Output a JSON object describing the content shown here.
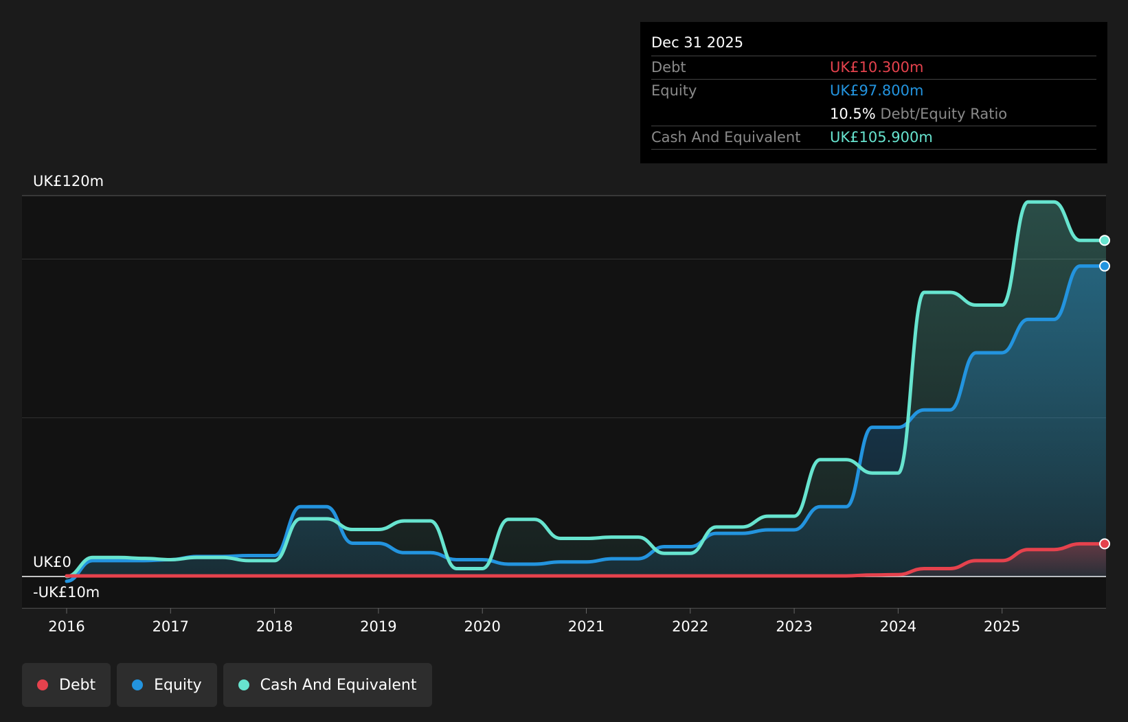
{
  "tooltip": {
    "date": "Dec 31 2025",
    "debt_label": "Debt",
    "debt_value": "UK£10.300m",
    "equity_label": "Equity",
    "equity_value": "UK£97.800m",
    "ratio_value": "10.5%",
    "ratio_label": "Debt/Equity Ratio",
    "cash_label": "Cash And Equivalent",
    "cash_value": "UK£105.900m"
  },
  "legend": [
    {
      "label": "Debt",
      "color": "#e5424d"
    },
    {
      "label": "Equity",
      "color": "#2394df"
    },
    {
      "label": "Cash And Equivalent",
      "color": "#67e4cf"
    }
  ],
  "chart_data": {
    "type": "area",
    "y_tick_labels": [
      {
        "value": 120,
        "label": "UK£120m"
      },
      {
        "value": 0,
        "label": "UK£0"
      },
      {
        "value": -10,
        "label": "-UK£10m"
      }
    ],
    "ylim": [
      -10,
      120
    ],
    "xlim": [
      2015.58,
      2026.0
    ],
    "x_ticks": [
      2016,
      2017,
      2018,
      2019,
      2020,
      2021,
      2022,
      2023,
      2024,
      2025
    ],
    "gridlines": [
      120,
      100,
      50,
      0,
      -10
    ],
    "legend_position": "bottom-left",
    "series": [
      {
        "name": "Debt",
        "color": "#e5424d",
        "points": [
          [
            2016.0,
            0.2
          ],
          [
            2023.5,
            0.2
          ],
          [
            2023.75,
            0.5
          ],
          [
            2024.0,
            0.6
          ],
          [
            2024.25,
            2.5
          ],
          [
            2024.5,
            2.5
          ],
          [
            2024.75,
            5.0
          ],
          [
            2025.0,
            5.0
          ],
          [
            2025.25,
            8.5
          ],
          [
            2025.5,
            8.5
          ],
          [
            2025.75,
            10.3
          ],
          [
            2026.0,
            10.3
          ]
        ]
      },
      {
        "name": "Equity",
        "color": "#2394df",
        "points": [
          [
            2016.0,
            -1.5
          ],
          [
            2016.25,
            5.0
          ],
          [
            2016.5,
            5.0
          ],
          [
            2016.75,
            5.0
          ],
          [
            2017.0,
            5.3
          ],
          [
            2017.25,
            6.3
          ],
          [
            2017.5,
            6.3
          ],
          [
            2017.75,
            6.6
          ],
          [
            2018.0,
            6.6
          ],
          [
            2018.25,
            22.0
          ],
          [
            2018.5,
            22.0
          ],
          [
            2018.75,
            10.5
          ],
          [
            2019.0,
            10.5
          ],
          [
            2019.25,
            7.5
          ],
          [
            2019.5,
            7.5
          ],
          [
            2019.75,
            5.3
          ],
          [
            2020.0,
            5.3
          ],
          [
            2020.25,
            3.9
          ],
          [
            2020.5,
            3.9
          ],
          [
            2020.75,
            4.6
          ],
          [
            2021.0,
            4.6
          ],
          [
            2021.25,
            5.6
          ],
          [
            2021.5,
            5.6
          ],
          [
            2021.75,
            9.4
          ],
          [
            2022.0,
            9.4
          ],
          [
            2022.25,
            13.6
          ],
          [
            2022.5,
            13.6
          ],
          [
            2022.75,
            14.7
          ],
          [
            2023.0,
            14.7
          ],
          [
            2023.25,
            22.0
          ],
          [
            2023.5,
            22.0
          ],
          [
            2023.75,
            47.0
          ],
          [
            2024.0,
            47.0
          ],
          [
            2024.25,
            52.5
          ],
          [
            2024.5,
            52.5
          ],
          [
            2024.75,
            70.5
          ],
          [
            2025.0,
            70.5
          ],
          [
            2025.25,
            81.0
          ],
          [
            2025.5,
            81.0
          ],
          [
            2025.75,
            97.8
          ],
          [
            2026.0,
            97.8
          ]
        ]
      },
      {
        "name": "Cash And Equivalent",
        "color": "#67e4cf",
        "points": [
          [
            2016.0,
            0.0
          ],
          [
            2016.25,
            6.0
          ],
          [
            2016.5,
            6.0
          ],
          [
            2016.75,
            5.7
          ],
          [
            2017.0,
            5.3
          ],
          [
            2017.25,
            6.0
          ],
          [
            2017.5,
            6.0
          ],
          [
            2017.75,
            5.0
          ],
          [
            2018.0,
            5.0
          ],
          [
            2018.25,
            18.2
          ],
          [
            2018.5,
            18.2
          ],
          [
            2018.75,
            14.8
          ],
          [
            2019.0,
            14.8
          ],
          [
            2019.25,
            17.5
          ],
          [
            2019.5,
            17.5
          ],
          [
            2019.75,
            2.5
          ],
          [
            2020.0,
            2.5
          ],
          [
            2020.25,
            18.0
          ],
          [
            2020.5,
            18.0
          ],
          [
            2020.75,
            12.0
          ],
          [
            2021.0,
            12.0
          ],
          [
            2021.25,
            12.4
          ],
          [
            2021.5,
            12.4
          ],
          [
            2021.75,
            7.3
          ],
          [
            2022.0,
            7.3
          ],
          [
            2022.25,
            15.6
          ],
          [
            2022.5,
            15.6
          ],
          [
            2022.75,
            19.0
          ],
          [
            2023.0,
            19.0
          ],
          [
            2023.25,
            36.8
          ],
          [
            2023.5,
            36.8
          ],
          [
            2023.75,
            32.6
          ],
          [
            2024.0,
            32.6
          ],
          [
            2024.25,
            89.5
          ],
          [
            2024.5,
            89.5
          ],
          [
            2024.75,
            85.5
          ],
          [
            2025.0,
            85.5
          ],
          [
            2025.25,
            118.0
          ],
          [
            2025.5,
            118.0
          ],
          [
            2025.75,
            105.9
          ],
          [
            2026.0,
            105.9
          ]
        ]
      }
    ]
  }
}
